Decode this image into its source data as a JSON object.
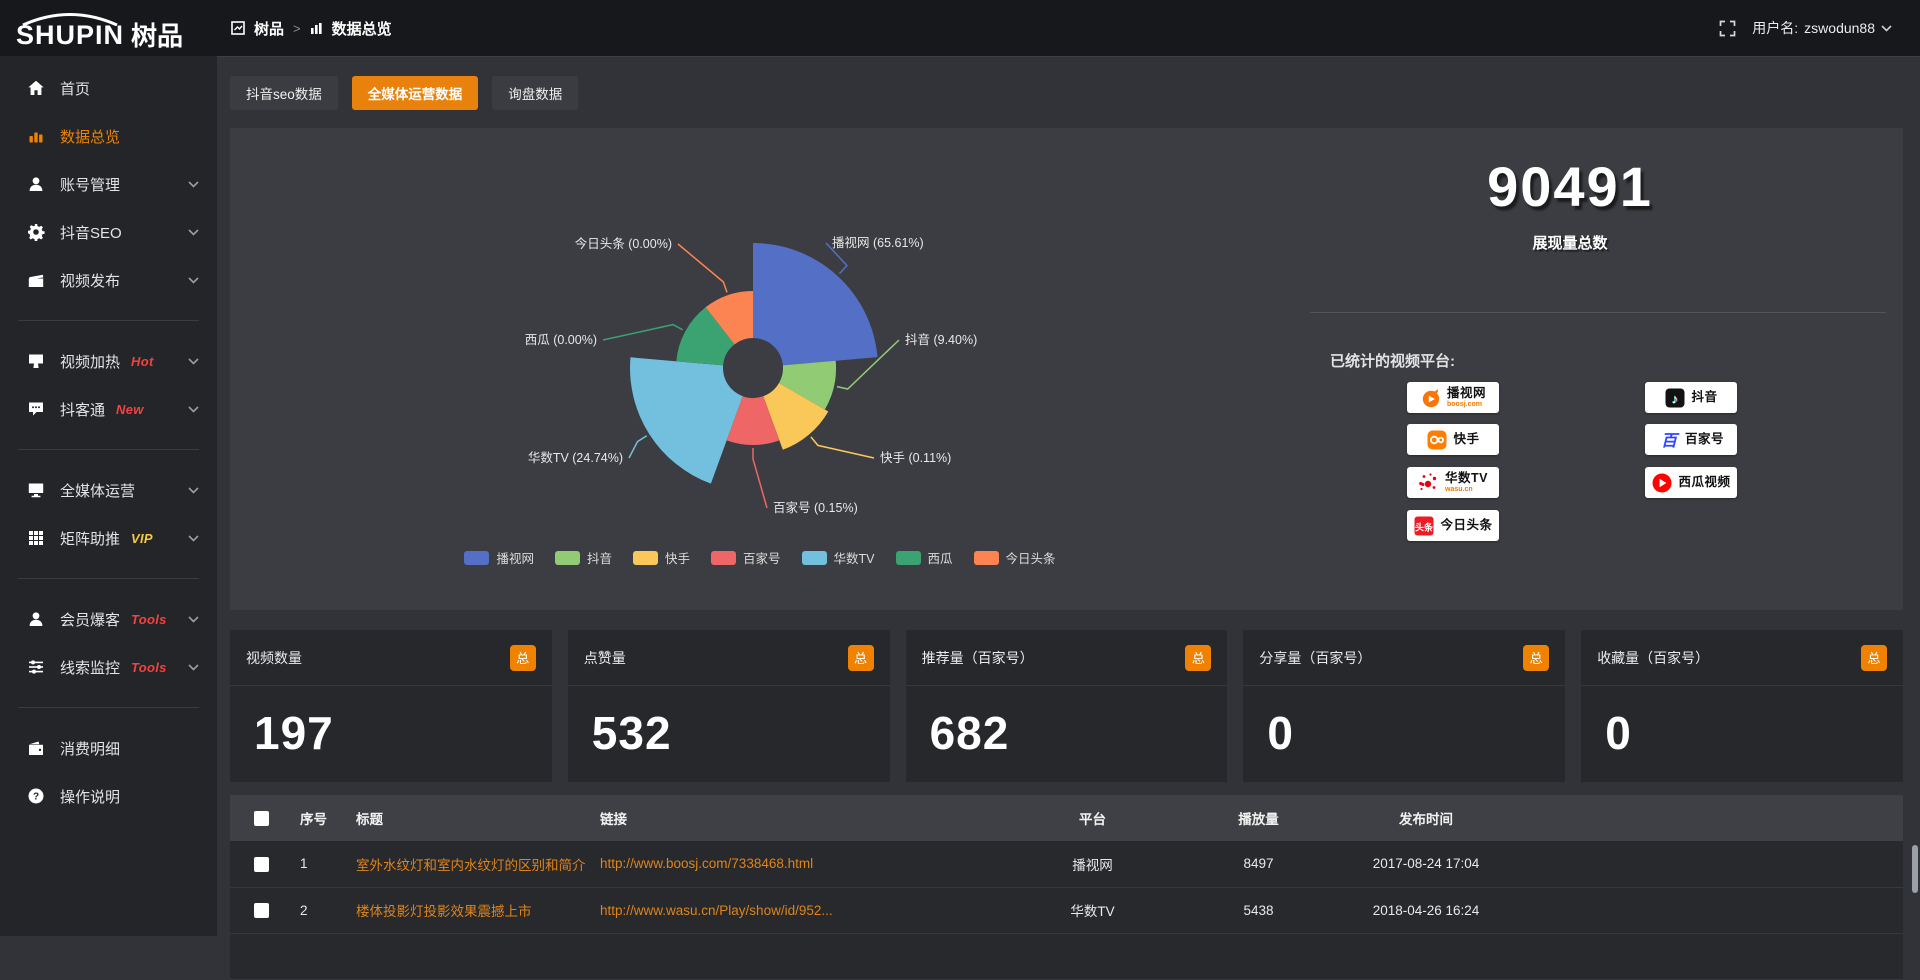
{
  "brand": {
    "logo_en": "SHUPIN",
    "logo_cn": "树品"
  },
  "topbar": {
    "breadcrumb_root": "树品",
    "breadcrumb_separator": ">",
    "breadcrumb_current": "数据总览",
    "username_label": "用户名:",
    "username": "zswodun88"
  },
  "sidebar": {
    "items": [
      {
        "label": "首页",
        "icon": "home"
      },
      {
        "label": "数据总览",
        "icon": "bar-chart",
        "active": true
      },
      {
        "label": "账号管理",
        "icon": "user",
        "chevron": true
      },
      {
        "label": "抖音SEO",
        "icon": "gear",
        "chevron": true
      },
      {
        "label": "视频发布",
        "icon": "clapper",
        "chevron": true
      },
      {
        "divider": true
      },
      {
        "label": "视频加热",
        "icon": "heat",
        "badge": "Hot",
        "badge_color": "#f5413d",
        "chevron": true
      },
      {
        "label": "抖客通",
        "icon": "chat",
        "badge": "New",
        "badge_color": "#f5413d",
        "chevron": true
      },
      {
        "divider": true
      },
      {
        "label": "全媒体运营",
        "icon": "monitor",
        "chevron": true
      },
      {
        "label": "矩阵助推",
        "icon": "grid",
        "badge": "VIP",
        "badge_color": "#f7c843",
        "chevron": true
      },
      {
        "divider": true
      },
      {
        "label": "会员爆客",
        "icon": "person",
        "badge": "Tools",
        "badge_color": "#f5413d",
        "chevron": true
      },
      {
        "label": "线索监控",
        "icon": "sliders",
        "badge": "Tools",
        "badge_color": "#f5413d",
        "chevron": true
      },
      {
        "divider": true
      },
      {
        "label": "消费明细",
        "icon": "wallet"
      },
      {
        "label": "操作说明",
        "icon": "help"
      }
    ]
  },
  "tabs": [
    {
      "label": "抖音seo数据"
    },
    {
      "label": "全媒体运营数据",
      "active": true
    },
    {
      "label": "询盘数据"
    }
  ],
  "chart_data": {
    "type": "pie",
    "subtype": "nightingale-rose",
    "legend_position": "bottom",
    "slices": [
      {
        "name": "播视网",
        "pct": 65.61,
        "color": "#5470c6",
        "label": "播视网 (65.61%)"
      },
      {
        "name": "抖音",
        "pct": 9.4,
        "color": "#91cc75",
        "label": "抖音 (9.40%)"
      },
      {
        "name": "快手",
        "pct": 0.11,
        "color": "#fac858",
        "label": "快手 (0.11%)"
      },
      {
        "name": "百家号",
        "pct": 0.15,
        "color": "#ee6666",
        "label": "百家号 (0.15%)"
      },
      {
        "name": "华数TV",
        "pct": 24.74,
        "color": "#73c0de",
        "label": "华数TV (24.74%)"
      },
      {
        "name": "西瓜",
        "pct": 0.0,
        "color": "#3ba272",
        "label": "西瓜 (0.00%)"
      },
      {
        "name": "今日头条",
        "pct": 0.0,
        "color": "#fc8452",
        "label": "今日头条 (0.00%)"
      }
    ],
    "legend": [
      "播视网",
      "抖音",
      "快手",
      "百家号",
      "华数TV",
      "西瓜",
      "今日头条"
    ]
  },
  "summary": {
    "total_value": "90491",
    "total_label": "展现量总数",
    "platforms_label": "已统计的视频平台:",
    "platforms_left": [
      {
        "name": "播视网",
        "sub": "boosj.com",
        "icon": "boosj"
      },
      {
        "name": "快手",
        "icon": "kuaishou"
      },
      {
        "name": "华数TV",
        "sub": "wasu.cn",
        "icon": "wasu"
      },
      {
        "name": "今日头条",
        "icon": "toutiao"
      }
    ],
    "platforms_right": [
      {
        "name": "抖音",
        "icon": "douyin"
      },
      {
        "name": "百家号",
        "icon": "baijia"
      },
      {
        "name": "西瓜视频",
        "icon": "xigua"
      }
    ]
  },
  "stat_cards": [
    {
      "title": "视频数量",
      "badge": "总",
      "value": "197"
    },
    {
      "title": "点赞量",
      "badge": "总",
      "value": "532"
    },
    {
      "title": "推荐量（百家号）",
      "badge": "总",
      "value": "682"
    },
    {
      "title": "分享量（百家号）",
      "badge": "总",
      "value": "0"
    },
    {
      "title": "收藏量（百家号）",
      "badge": "总",
      "value": "0"
    }
  ],
  "table": {
    "headers": [
      "序号",
      "标题",
      "链接",
      "平台",
      "播放量",
      "发布时间"
    ],
    "rows": [
      {
        "no": "1",
        "title": "室外水纹灯和室内水纹灯的区别和简介",
        "link": "http://www.boosj.com/7338468.html",
        "platform": "播视网",
        "plays": "8497",
        "time": "2017-08-24 17:04"
      },
      {
        "no": "2",
        "title": "楼体投影灯投影效果震撼上市",
        "link": "http://www.wasu.cn/Play/show/id/952...",
        "platform": "华数TV",
        "plays": "5438",
        "time": "2018-04-26 16:24"
      },
      {
        "no": "",
        "title": "",
        "link": "",
        "platform": "",
        "plays": "",
        "time": ""
      }
    ]
  }
}
